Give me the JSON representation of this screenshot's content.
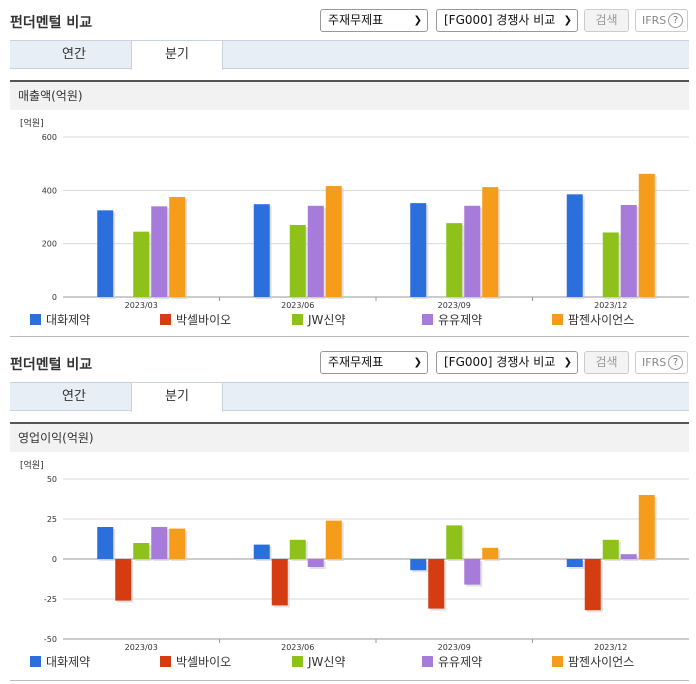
{
  "panels": [
    {
      "title": "펀더멘털 비교",
      "select1": "주재무제표",
      "select2": "[FG000] 경쟁사 비교",
      "search_label": "검색",
      "ifrs_label": "IFRS",
      "ifrs_help": "?",
      "tabs": [
        {
          "label": "연간"
        },
        {
          "label": "분기"
        }
      ],
      "active_tab": 1,
      "section_title": "매출액(억원)",
      "unit_label": "[억원]"
    },
    {
      "title": "펀더멘털 비교",
      "select1": "주재무제표",
      "select2": "[FG000] 경쟁사 비교",
      "search_label": "검색",
      "ifrs_label": "IFRS",
      "ifrs_help": "?",
      "tabs": [
        {
          "label": "연간"
        },
        {
          "label": "분기"
        }
      ],
      "active_tab": 1,
      "section_title": "영업이익(억원)",
      "unit_label": "[억원]"
    }
  ],
  "colors": {
    "대화제약": "#2a6fdb",
    "박셀바이오": "#d63c12",
    "JW신약": "#8ec21a",
    "유유제약": "#a77bd9",
    "팜젠사이언스": "#f59c1a"
  },
  "chart_data": [
    {
      "type": "bar",
      "title": "",
      "ylabel": "[억원]",
      "categories": [
        "2023/03",
        "2023/06",
        "2023/09",
        "2023/12"
      ],
      "ylim": [
        0,
        600
      ],
      "yticks": [
        0,
        200,
        400,
        600
      ],
      "grid": true,
      "legend": "bottom",
      "series": [
        {
          "name": "대화제약",
          "values": [
            325,
            348,
            352,
            385
          ]
        },
        {
          "name": "박셀바이오",
          "values": [
            0,
            0,
            0,
            0
          ]
        },
        {
          "name": "JW신약",
          "values": [
            245,
            270,
            277,
            242
          ]
        },
        {
          "name": "유유제약",
          "values": [
            340,
            342,
            342,
            345
          ]
        },
        {
          "name": "팜젠사이언스",
          "values": [
            375,
            416,
            412,
            462
          ]
        }
      ]
    },
    {
      "type": "bar",
      "title": "",
      "ylabel": "[억원]",
      "categories": [
        "2023/03",
        "2023/06",
        "2023/09",
        "2023/12"
      ],
      "ylim": [
        -50,
        50
      ],
      "yticks": [
        -50,
        -25,
        0,
        25,
        50
      ],
      "grid": true,
      "legend": "bottom",
      "series": [
        {
          "name": "대화제약",
          "values": [
            20,
            9,
            -7,
            -5
          ]
        },
        {
          "name": "박셀바이오",
          "values": [
            -26,
            -29,
            -31,
            -32
          ]
        },
        {
          "name": "JW신약",
          "values": [
            10,
            12,
            21,
            12
          ]
        },
        {
          "name": "유유제약",
          "values": [
            20,
            -5,
            -16,
            3
          ]
        },
        {
          "name": "팜젠사이언스",
          "values": [
            19,
            24,
            7,
            40
          ]
        }
      ]
    }
  ]
}
